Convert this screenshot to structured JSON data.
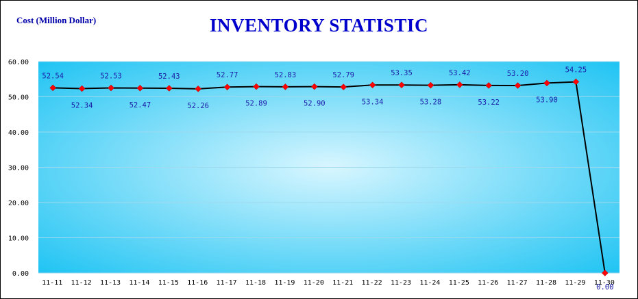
{
  "chart_data": {
    "type": "line",
    "title": "INVENTORY STATISTIC",
    "ylabel": "Cost (Million Dollar)",
    "xlabel": "",
    "categories": [
      "11-11",
      "11-12",
      "11-13",
      "11-14",
      "11-15",
      "11-16",
      "11-17",
      "11-18",
      "11-19",
      "11-20",
      "11-21",
      "11-22",
      "11-23",
      "11-24",
      "11-25",
      "11-26",
      "11-27",
      "11-28",
      "11-29",
      "11-30"
    ],
    "series": [
      {
        "values": [
          52.54,
          52.34,
          52.53,
          52.47,
          52.43,
          52.26,
          52.77,
          52.89,
          52.83,
          52.9,
          52.79,
          53.34,
          53.35,
          53.28,
          53.42,
          53.22,
          53.2,
          53.9,
          54.25,
          0.0
        ],
        "data_labels": [
          "52.54",
          "52.34",
          "52.53",
          "52.47",
          "52.43",
          "52.26",
          "52.77",
          "52.89",
          "52.83",
          "52.90",
          "52.79",
          "53.34",
          "53.35",
          "53.28",
          "53.42",
          "53.22",
          "53.20",
          "53.90",
          "54.25",
          "0.00"
        ]
      }
    ],
    "ylim": [
      0,
      60
    ],
    "yticks": [
      "0.00",
      "10.00",
      "20.00",
      "30.00",
      "40.00",
      "50.00",
      "60.00"
    ],
    "grid": true,
    "line_color": "#000000",
    "marker_color": "#ff0000",
    "plot_background": [
      "#d8f6ff",
      "#21c4f3"
    ]
  }
}
